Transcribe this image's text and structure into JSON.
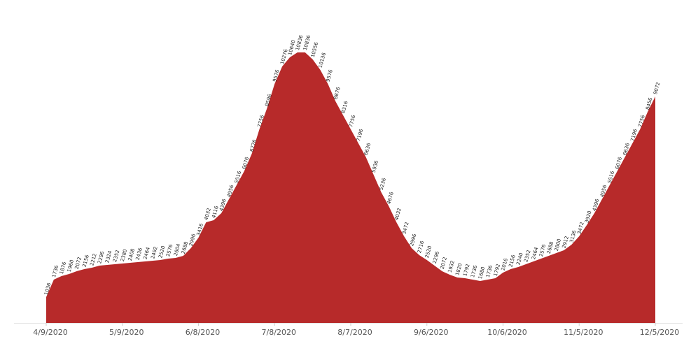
{
  "chart_data": {
    "type": "area",
    "color": "#b72a2a",
    "x": [
      "4/9/2020",
      "4/12/2020",
      "4/15/2020",
      "4/18/2020",
      "4/21/2020",
      "4/24/2020",
      "4/27/2020",
      "4/30/2020",
      "5/3/2020",
      "5/6/2020",
      "5/9/2020",
      "5/12/2020",
      "5/15/2020",
      "5/18/2020",
      "5/21/2020",
      "5/24/2020",
      "5/27/2020",
      "5/30/2020",
      "6/2/2020",
      "6/5/2020",
      "6/8/2020",
      "6/11/2020",
      "6/14/2020",
      "6/17/2020",
      "6/20/2020",
      "6/23/2020",
      "6/26/2020",
      "6/29/2020",
      "7/2/2020",
      "7/5/2020",
      "7/8/2020",
      "7/11/2020",
      "7/14/2020",
      "7/17/2020",
      "7/20/2020",
      "7/23/2020",
      "7/26/2020",
      "7/29/2020",
      "8/1/2020",
      "8/4/2020",
      "8/7/2020",
      "8/10/2020",
      "8/13/2020",
      "8/16/2020",
      "8/19/2020",
      "8/22/2020",
      "8/25/2020",
      "8/28/2020",
      "8/31/2020",
      "9/3/2020",
      "9/6/2020",
      "9/9/2020",
      "9/12/2020",
      "9/15/2020",
      "9/18/2020",
      "9/21/2020",
      "9/24/2020",
      "9/27/2020",
      "9/30/2020",
      "10/3/2020",
      "10/6/2020",
      "10/9/2020",
      "10/12/2020",
      "10/15/2020",
      "10/18/2020",
      "10/21/2020",
      "10/24/2020",
      "10/27/2020",
      "10/30/2020",
      "11/2/2020",
      "11/5/2020",
      "11/8/2020",
      "11/11/2020",
      "11/14/2020",
      "11/17/2020",
      "11/20/2020",
      "11/23/2020",
      "11/26/2020",
      "11/29/2020",
      "12/2/2020",
      "12/5/2020"
    ],
    "values": [
      1036,
      1736,
      1876,
      1960,
      2072,
      2156,
      2212,
      2296,
      2324,
      2352,
      2380,
      2408,
      2436,
      2464,
      2492,
      2520,
      2576,
      2604,
      2688,
      2996,
      3416,
      4032,
      4116,
      4396,
      4956,
      5516,
      6076,
      6776,
      7756,
      8596,
      9576,
      10276,
      10640,
      10836,
      10836,
      10556,
      10136,
      9576,
      8876,
      8316,
      7756,
      7196,
      6636,
      5936,
      5236,
      4676,
      4032,
      3472,
      2996,
      2716,
      2520,
      2296,
      2072,
      1932,
      1820,
      1792,
      1736,
      1680,
      1736,
      1792,
      2016,
      2156,
      2240,
      2352,
      2464,
      2576,
      2688,
      2800,
      2912,
      3136,
      3472,
      3920,
      4396,
      4956,
      5516,
      6076,
      6636,
      7196,
      7756,
      8456,
      9072
    ],
    "xlim": [
      "4/9/2020",
      "12/5/2020"
    ],
    "xticks": [
      "4/9/2020",
      "5/9/2020",
      "6/8/2020",
      "7/8/2020",
      "8/7/2020",
      "9/6/2020",
      "10/6/2020",
      "11/5/2020",
      "12/5/2020"
    ],
    "ylim": [
      0,
      12376
    ]
  }
}
